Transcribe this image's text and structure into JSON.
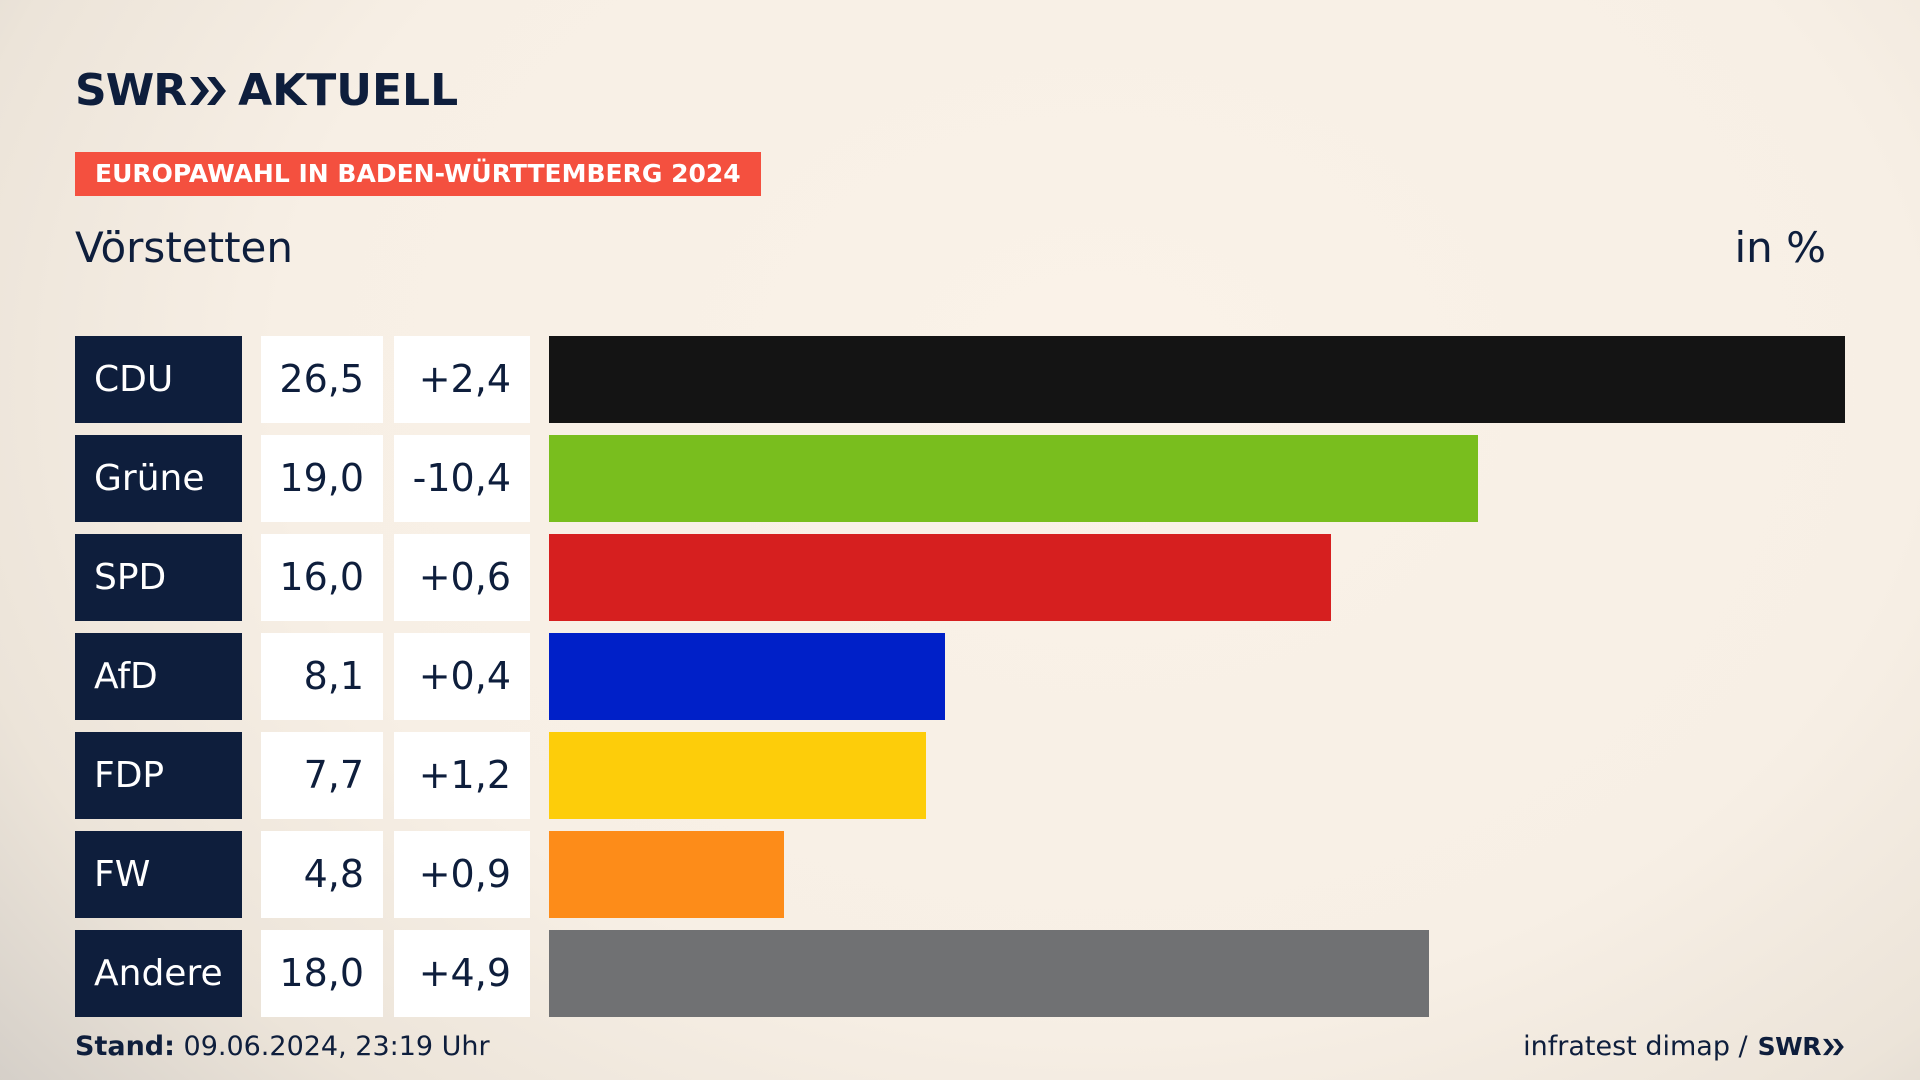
{
  "header": {
    "brand": "SWR",
    "brand_sub": "AKTUELL",
    "tag": "EUROPAWAHL IN BADEN-WÜRTTEMBERG 2024",
    "place": "Vörstetten",
    "unit": "in %"
  },
  "chart_data": {
    "type": "bar",
    "orientation": "horizontal",
    "categories": [
      "CDU",
      "Grüne",
      "SPD",
      "AfD",
      "FDP",
      "FW",
      "Andere"
    ],
    "values": [
      26.5,
      19.0,
      16.0,
      8.1,
      7.7,
      4.8,
      18.0
    ],
    "value_labels": [
      "26,5",
      "19,0",
      "16,0",
      "8,1",
      "7,7",
      "4,8",
      "18,0"
    ],
    "diff_labels": [
      "+2,4",
      "-10,4",
      "+0,6",
      "+0,4",
      "+1,2",
      "+0,9",
      "+4,9"
    ],
    "colors": [
      "#141414",
      "#79be1e",
      "#d61f1f",
      "#0020c8",
      "#fdcd0a",
      "#fd8c19",
      "#707173"
    ],
    "unit": "in %"
  },
  "footer": {
    "stand_label": "Stand:",
    "stand_value": "09.06.2024, 23:19 Uhr",
    "source": "infratest dimap /",
    "source_logo": "SWR"
  }
}
